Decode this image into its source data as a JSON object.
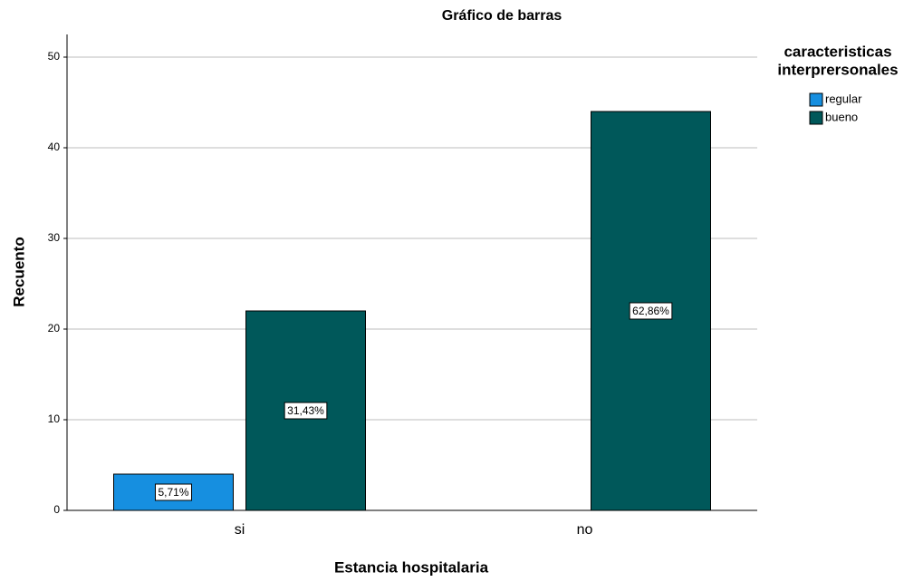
{
  "chart_data": {
    "type": "bar",
    "title": "Gráfico de barras",
    "x_label": "Estancia hospitalaria",
    "y_label": "Recuento",
    "legend_title": [
      "caracteristicas",
      "interprersonales"
    ],
    "categories": [
      "si",
      "no"
    ],
    "series": [
      {
        "name": "regular",
        "color": "#168fe0",
        "values": [
          4,
          null
        ],
        "percent_labels": [
          "5,71%",
          null
        ]
      },
      {
        "name": "bueno",
        "color": "#00585a",
        "values": [
          22,
          44
        ],
        "percent_labels": [
          "31,43%",
          "62,86%"
        ]
      }
    ],
    "ylim": [
      0,
      52.5
    ],
    "yticks": [
      0,
      10,
      20,
      30,
      40,
      50
    ],
    "grid": true,
    "legend": "right"
  }
}
